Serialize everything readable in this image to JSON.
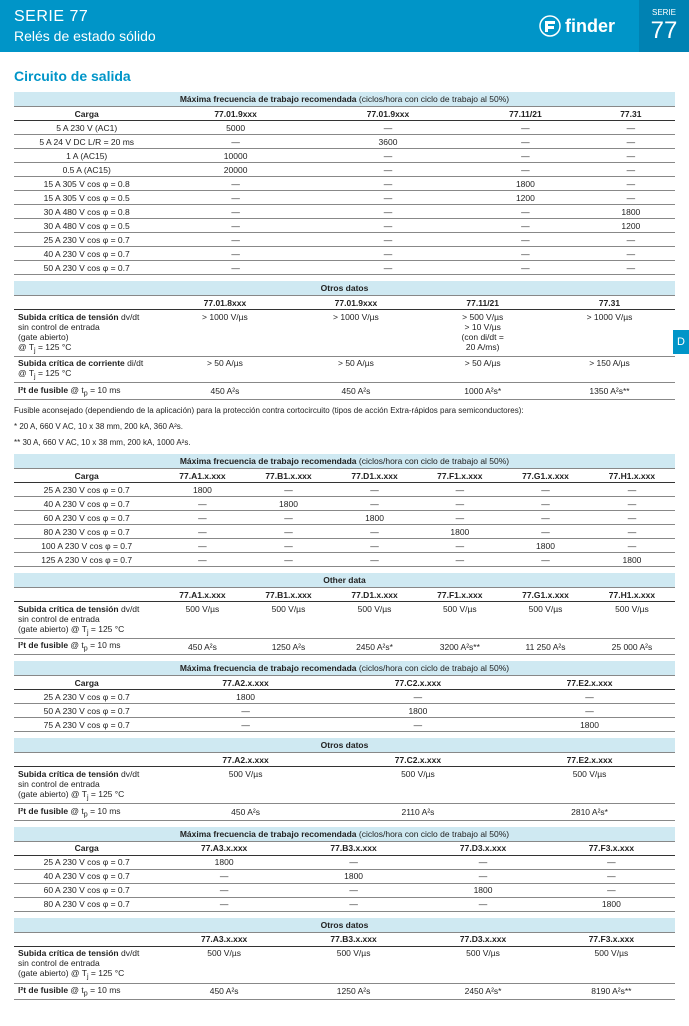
{
  "header": {
    "series": "SERIE 77",
    "subtitle": "Relés de estado sólido",
    "logo_text": "finder",
    "badge_top": "SERIE",
    "badge_num": "77",
    "tab_letter": "D"
  },
  "section_title": "Circuito de salida",
  "band_text_a": "Máxima frecuencia de trabajo recomendada",
  "band_text_b": " (ciclos/hora con ciclo de trabajo al 50%)",
  "otros_datos": "Otros datos",
  "other_data": "Other data",
  "carga_label": "Carga",
  "t1": {
    "cols": [
      "77.01.9xxx",
      "77.01.9xxx",
      "77.11/21",
      "77.31"
    ],
    "rows": [
      [
        "5 A 230 V (AC1)",
        "5000",
        "—",
        "—",
        "—"
      ],
      [
        "5 A 24 V DC L/R = 20 ms",
        "—",
        "3600",
        "—",
        "—"
      ],
      [
        "1 A (AC15)",
        "10000",
        "—",
        "—",
        "—"
      ],
      [
        "0.5 A (AC15)",
        "20000",
        "—",
        "—",
        "—"
      ],
      [
        "15 A 305 V cos φ = 0.8",
        "—",
        "—",
        "1800",
        "—"
      ],
      [
        "15 A 305 V cos φ = 0.5",
        "—",
        "—",
        "1200",
        "—"
      ],
      [
        "30 A 480 V cos φ = 0.8",
        "—",
        "—",
        "—",
        "1800"
      ],
      [
        "30 A 480 V cos φ = 0.5",
        "—",
        "—",
        "—",
        "1200"
      ],
      [
        "25 A 230 V cos φ = 0.7",
        "—",
        "—",
        "—",
        "—"
      ],
      [
        "40 A 230 V cos φ = 0.7",
        "—",
        "—",
        "—",
        "—"
      ],
      [
        "50 A 230 V cos φ = 0.7",
        "—",
        "—",
        "—",
        "—"
      ]
    ]
  },
  "t2": {
    "cols": [
      "77.01.8xxx",
      "77.01.9xxx",
      "77.11/21",
      "77.31"
    ],
    "r1_label": "Subida crítica de tensión dv/dt\nsin control de entrada\n(gate abierto)\n@ Tj = 125 °C",
    "r1": [
      "> 1000 V/µs",
      "> 1000 V/µs",
      "> 500 V/µs\n> 10 V/µs\n(con di/dt =\n20 A/ms)",
      "> 1000 V/µs"
    ],
    "r2_label": "Subida crítica de corriente di/dt\n@ Tj = 125 °C",
    "r2": [
      "> 50 A/µs",
      "> 50 A/µs",
      "> 50 A/µs",
      "> 150 A/µs"
    ],
    "r3_label": "I²t de fusible @ tp = 10 ms",
    "r3": [
      "450 A²s",
      "450 A²s",
      "1000 A²s*",
      "1350 A²s**"
    ]
  },
  "footnote1": "Fusible aconsejado (dependiendo de la aplicación) para la protección contra cortocircuito (tipos de acción Extra-rápidos para semiconductores):",
  "footnote2": "*  20 A, 660 V AC, 10 x 38 mm, 200 kA, 360 A²s.",
  "footnote3": "** 30 A, 660 V AC, 10 x 38 mm, 200 kA, 1000 A²s.",
  "t3": {
    "cols": [
      "77.A1.x.xxx",
      "77.B1.x.xxx",
      "77.D1.x.xxx",
      "77.F1.x.xxx",
      "77.G1.x.xxx",
      "77.H1.x.xxx"
    ],
    "rows": [
      [
        "25 A 230 V cos φ = 0.7",
        "1800",
        "—",
        "—",
        "—",
        "—",
        "—"
      ],
      [
        "40 A 230 V cos φ = 0.7",
        "—",
        "1800",
        "—",
        "—",
        "—",
        "—"
      ],
      [
        "60 A 230 V cos φ = 0.7",
        "—",
        "—",
        "1800",
        "—",
        "—",
        "—"
      ],
      [
        "80 A 230 V cos φ = 0.7",
        "—",
        "—",
        "—",
        "1800",
        "—",
        "—"
      ],
      [
        "100 A 230 V cos φ = 0.7",
        "—",
        "—",
        "—",
        "—",
        "1800",
        "—"
      ],
      [
        "125 A 230 V cos φ = 0.7",
        "—",
        "—",
        "—",
        "—",
        "—",
        "1800"
      ]
    ]
  },
  "t4": {
    "cols": [
      "77.A1.x.xxx",
      "77.B1.x.xxx",
      "77.D1.x.xxx",
      "77.F1.x.xxx",
      "77.G1.x.xxx",
      "77.H1.x.xxx"
    ],
    "r1_label": "Subida crítica de tensión dv/dt\nsin control de entrada\n(gate abierto) @ Tj = 125 °C",
    "r1": [
      "500 V/µs",
      "500 V/µs",
      "500 V/µs",
      "500 V/µs",
      "500 V/µs",
      "500 V/µs"
    ],
    "r2_label": "I²t de fusible @ tp = 10 ms",
    "r2": [
      "450 A²s",
      "1250 A²s",
      "2450 A²s*",
      "3200 A²s**",
      "11 250 A²s",
      "25 000 A²s"
    ]
  },
  "t5": {
    "cols": [
      "77.A2.x.xxx",
      "77.C2.x.xxx",
      "77.E2.x.xxx"
    ],
    "rows": [
      [
        "25 A 230 V cos φ = 0.7",
        "1800",
        "—",
        "—"
      ],
      [
        "50 A 230 V cos φ = 0.7",
        "—",
        "1800",
        "—"
      ],
      [
        "75 A 230 V cos φ = 0.7",
        "—",
        "—",
        "1800"
      ]
    ]
  },
  "t6": {
    "cols": [
      "77.A2.x.xxx",
      "77.C2.x.xxx",
      "77.E2.x.xxx"
    ],
    "r1_label": "Subida crítica de tensión dv/dt\nsin control de entrada\n(gate abierto)  @ Tj = 125 °C",
    "r1": [
      "500 V/µs",
      "500 V/µs",
      "500 V/µs"
    ],
    "r2_label": "I²t de fusible @ tp = 10 ms",
    "r2": [
      "450 A²s",
      "2110 A²s",
      "2810 A²s*"
    ]
  },
  "t7": {
    "cols": [
      "77.A3.x.xxx",
      "77.B3.x.xxx",
      "77.D3.x.xxx",
      "77.F3.x.xxx"
    ],
    "rows": [
      [
        "25 A 230 V cos φ = 0.7",
        "1800",
        "—",
        "—",
        "—"
      ],
      [
        "40 A 230 V cos φ = 0.7",
        "—",
        "1800",
        "—",
        "—"
      ],
      [
        "60 A 230 V cos φ = 0.7",
        "—",
        "—",
        "1800",
        "—"
      ],
      [
        "80 A 230 V cos φ = 0.7",
        "—",
        "—",
        "—",
        "1800"
      ]
    ]
  },
  "t8": {
    "cols": [
      "77.A3.x.xxx",
      "77.B3.x.xxx",
      "77.D3.x.xxx",
      "77.F3.x.xxx"
    ],
    "r1_label": "Subida crítica de tensión dv/dt\nsin control de entrada\n(gate abierto) @ Tj = 125 °C",
    "r1": [
      "500 V/µs",
      "500 V/µs",
      "500 V/µs",
      "500 V/µs"
    ],
    "r2_label": "I²t de fusible @ tp = 10 ms",
    "r2": [
      "450 A²s",
      "1250 A²s",
      "2450 A²s*",
      "8190 A²s**"
    ]
  }
}
